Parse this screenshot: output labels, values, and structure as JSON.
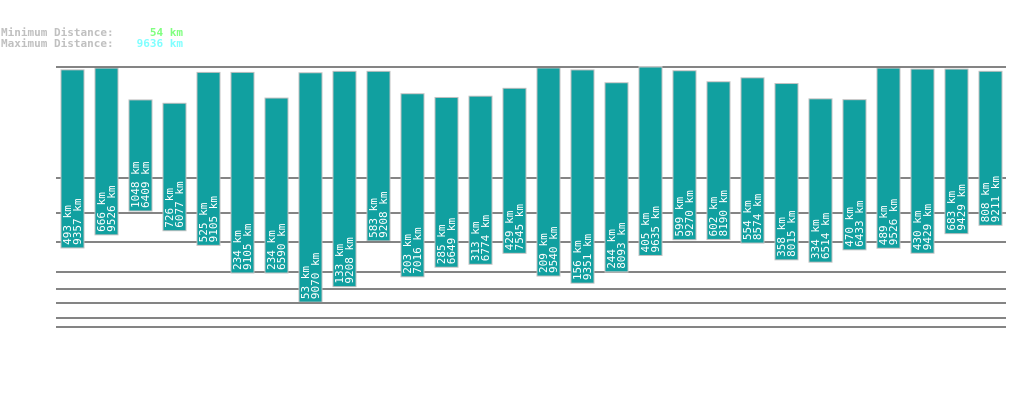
{
  "summary": {
    "min_label": "Minimum Distance:",
    "min_value": "54 km",
    "max_label": "Maximum Distance:",
    "max_value": "9636 km",
    "min_color": "#80ff80",
    "max_color": "#80ffff"
  },
  "chart_data": {
    "type": "bar",
    "unit": "km",
    "bar_color": "#11a0a0",
    "series": [
      {
        "values_min": [
          493,
          666,
          1048,
          726,
          525,
          234,
          234,
          53,
          133,
          583,
          203,
          285,
          313,
          429,
          209,
          156,
          244,
          405,
          599,
          602,
          554,
          358,
          334,
          470,
          489,
          430,
          683,
          808
        ]
      },
      {
        "values_max": [
          9357,
          9526,
          6409,
          6077,
          9105,
          9105,
          6590,
          9070,
          9208,
          9208,
          7016,
          6649,
          6774,
          7545,
          9540,
          9351,
          8093,
          9635,
          9270,
          8190,
          8574,
          8015,
          6514,
          6433,
          9526,
          9429,
          9429,
          9211
        ]
      }
    ]
  }
}
